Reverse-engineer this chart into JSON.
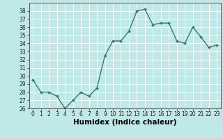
{
  "x": [
    0,
    1,
    2,
    3,
    4,
    5,
    6,
    7,
    8,
    9,
    10,
    11,
    12,
    13,
    14,
    15,
    16,
    17,
    18,
    19,
    20,
    21,
    22,
    23
  ],
  "y": [
    29.5,
    28.0,
    28.0,
    27.5,
    26.0,
    27.0,
    28.0,
    27.5,
    28.5,
    32.5,
    34.3,
    34.3,
    35.5,
    38.0,
    38.2,
    36.3,
    36.5,
    36.5,
    34.3,
    34.0,
    36.0,
    34.8,
    33.5,
    33.8
  ],
  "line_color": "#2e7d6e",
  "marker": "D",
  "marker_size": 2.0,
  "bg_color": "#bfe8e8",
  "grid_color": "#ffffff",
  "xlabel": "Humidex (Indice chaleur)",
  "ylabel": "",
  "title": "",
  "ylim": [
    26,
    39
  ],
  "xlim": [
    -0.5,
    23.5
  ],
  "yticks": [
    26,
    27,
    28,
    29,
    30,
    31,
    32,
    33,
    34,
    35,
    36,
    37,
    38
  ],
  "xticks": [
    0,
    1,
    2,
    3,
    4,
    5,
    6,
    7,
    8,
    9,
    10,
    11,
    12,
    13,
    14,
    15,
    16,
    17,
    18,
    19,
    20,
    21,
    22,
    23
  ],
  "tick_fontsize": 5.5,
  "xlabel_fontsize": 7.5,
  "line_width": 1.0
}
